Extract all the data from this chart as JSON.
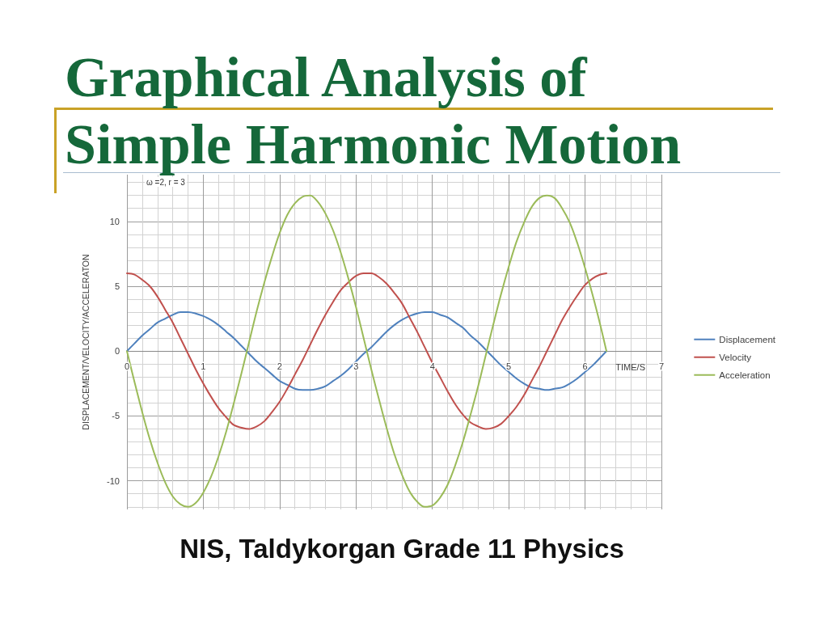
{
  "chart_data": {
    "type": "line",
    "title": "Graphical Analysis of Simple Harmonic Motion",
    "xlabel": "TIME/S",
    "ylabel": "DISPLACEMENT/VELOCITY/ACCELERATON",
    "annotations": [
      "ω =2, r = 3",
      "NIS, Taldykorgan Grade 11 Physics"
    ],
    "x": [
      0,
      0.1,
      0.2,
      0.3,
      0.4,
      0.5,
      0.6,
      0.7,
      0.8,
      0.9,
      1,
      1.1,
      1.2,
      1.3,
      1.4,
      1.5,
      1.6,
      1.7,
      1.8,
      1.9,
      2,
      2.1,
      2.2,
      2.3,
      2.4,
      2.5,
      2.6,
      2.7,
      2.8,
      2.9,
      3,
      3.1,
      3.2,
      3.3,
      3.4,
      3.5,
      3.6,
      3.7,
      3.8,
      3.9,
      4,
      4.1,
      4.2,
      4.3,
      4.4,
      4.5,
      4.6,
      4.7,
      4.8,
      4.9,
      5,
      5.1,
      5.2,
      5.3,
      5.4,
      5.5,
      5.6,
      5.7,
      5.8,
      5.9,
      6,
      6.1,
      6.2,
      6.28
    ],
    "series": [
      {
        "name": "Displacement",
        "color": "#4f81bd",
        "values": [
          0,
          0.6,
          1.2,
          1.7,
          2.2,
          2.5,
          2.8,
          3.0,
          3.0,
          2.9,
          2.7,
          2.4,
          2.0,
          1.5,
          1.0,
          0.4,
          -0.2,
          -0.8,
          -1.3,
          -1.8,
          -2.3,
          -2.6,
          -2.9,
          -3.0,
          -3.0,
          -2.9,
          -2.7,
          -2.3,
          -1.9,
          -1.4,
          -0.8,
          -0.2,
          0.3,
          0.9,
          1.5,
          2.0,
          2.4,
          2.7,
          2.9,
          3.0,
          3.0,
          2.8,
          2.6,
          2.2,
          1.8,
          1.2,
          0.7,
          0.1,
          -0.5,
          -1.1,
          -1.6,
          -2.1,
          -2.5,
          -2.8,
          -2.9,
          -3.0,
          -2.9,
          -2.8,
          -2.5,
          -2.1,
          -1.6,
          -1.1,
          -0.5,
          0
        ]
      },
      {
        "name": "Velocity",
        "color": "#c0504d",
        "values": [
          6.0,
          5.9,
          5.5,
          5.0,
          4.2,
          3.2,
          2.2,
          1.0,
          -0.2,
          -1.4,
          -2.5,
          -3.5,
          -4.4,
          -5.1,
          -5.7,
          -5.9,
          -6.0,
          -5.8,
          -5.4,
          -4.7,
          -3.9,
          -2.9,
          -1.8,
          -0.7,
          0.5,
          1.7,
          2.8,
          3.8,
          4.7,
          5.3,
          5.8,
          6.0,
          6.0,
          5.7,
          5.2,
          4.5,
          3.7,
          2.6,
          1.5,
          0.3,
          -0.9,
          -2.0,
          -3.1,
          -4.1,
          -4.9,
          -5.5,
          -5.8,
          -6.0,
          -5.9,
          -5.6,
          -5.0,
          -4.3,
          -3.4,
          -2.3,
          -1.2,
          0.0,
          1.2,
          2.4,
          3.4,
          4.3,
          5.1,
          5.6,
          5.9,
          6.0
        ]
      },
      {
        "name": "Acceleration",
        "color": "#9bbb59",
        "values": [
          0,
          -2.4,
          -4.7,
          -6.8,
          -8.6,
          -10.1,
          -11.2,
          -11.8,
          -12.0,
          -11.7,
          -10.9,
          -9.7,
          -8.1,
          -6.2,
          -4.0,
          -1.7,
          0.7,
          3.1,
          5.3,
          7.3,
          9.1,
          10.5,
          11.4,
          11.9,
          12.0,
          11.5,
          10.6,
          9.3,
          7.6,
          5.6,
          3.4,
          1.0,
          -1.4,
          -3.7,
          -5.9,
          -7.9,
          -9.5,
          -10.8,
          -11.6,
          -12.0,
          -11.9,
          -11.3,
          -10.3,
          -8.8,
          -7.0,
          -4.9,
          -2.7,
          -0.3,
          2.1,
          4.4,
          6.5,
          8.4,
          9.9,
          11.1,
          11.8,
          12.0,
          11.8,
          11.0,
          9.9,
          8.3,
          6.4,
          4.3,
          2.0,
          0
        ]
      }
    ],
    "xlim": [
      0,
      7
    ],
    "ylim": [
      -12.2,
      13.6
    ],
    "xticks": [
      0,
      {
        "value": 0.2,
        "label": null
      },
      {
        "value": 0.4,
        "label": null
      },
      {
        "value": 0.6,
        "label": null
      },
      {
        "value": 0.8,
        "label": null
      },
      1,
      {
        "value": 1.2,
        "label": null
      },
      {
        "value": 1.4,
        "label": null
      },
      {
        "value": 1.6,
        "label": null
      },
      {
        "value": 1.8,
        "label": null
      },
      2,
      {
        "value": 2.2,
        "label": null
      },
      {
        "value": 2.4,
        "label": null
      },
      {
        "value": 2.6,
        "label": null
      },
      {
        "value": 2.8,
        "label": null
      },
      3,
      {
        "value": 3.2,
        "label": null
      },
      {
        "value": 3.4,
        "label": null
      },
      {
        "value": 3.6,
        "label": null
      },
      {
        "value": 3.8,
        "label": null
      },
      4,
      {
        "value": 4.2,
        "label": null
      },
      {
        "value": 4.4,
        "label": null
      },
      {
        "value": 4.6,
        "label": null
      },
      {
        "value": 4.8,
        "label": null
      },
      5,
      {
        "value": 5.2,
        "label": null
      },
      {
        "value": 5.4,
        "label": null
      },
      {
        "value": 5.6,
        "label": null
      },
      {
        "value": 5.8,
        "label": null
      },
      6,
      {
        "value": 6.2,
        "label": null
      },
      {
        "value": 6.4,
        "label": null
      },
      {
        "value": 6.6,
        "label": null
      },
      {
        "value": 6.8,
        "label": null
      },
      7
    ],
    "yticks": [
      {
        "value": -12,
        "label": null
      },
      {
        "value": -11,
        "label": null
      },
      -10,
      {
        "value": -9,
        "label": null
      },
      {
        "value": -8,
        "label": null
      },
      {
        "value": -7,
        "label": null
      },
      {
        "value": -6,
        "label": null
      },
      -5,
      {
        "value": -4,
        "label": null
      },
      {
        "value": -3,
        "label": null
      },
      {
        "value": -2,
        "label": null
      },
      {
        "value": -1,
        "label": null
      },
      0,
      {
        "value": 1,
        "label": null
      },
      {
        "value": 2,
        "label": null
      },
      {
        "value": 3,
        "label": null
      },
      {
        "value": 4,
        "label": null
      },
      5,
      {
        "value": 6,
        "label": null
      },
      {
        "value": 7,
        "label": null
      },
      {
        "value": 8,
        "label": null
      },
      {
        "value": 9,
        "label": null
      },
      10,
      {
        "value": 11,
        "label": null
      },
      {
        "value": 12,
        "label": null
      },
      {
        "value": 13,
        "label": null
      }
    ],
    "grid": true,
    "legend": "right"
  }
}
